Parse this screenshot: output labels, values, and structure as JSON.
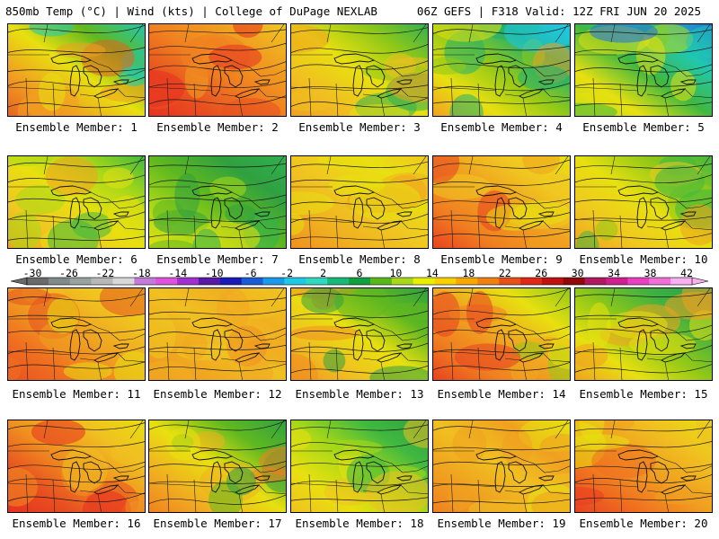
{
  "header": {
    "left": "850mb Temp (°C) | Wind (kts) | College of DuPage NEXLAB",
    "right": "06Z GEFS | F318 Valid: 12Z FRI JUN 20 2025"
  },
  "colorbar": {
    "labels": [
      "-30",
      "-26",
      "-22",
      "-18",
      "-14",
      "-10",
      "-6",
      "-2",
      "2",
      "6",
      "10",
      "14",
      "18",
      "22",
      "26",
      "30",
      "34",
      "38",
      "42"
    ],
    "colors": [
      "#6a6a6a",
      "#808a88",
      "#9aa2a0",
      "#b8b8b8",
      "#d8d8d8",
      "#c47ad8",
      "#de52de",
      "#a030d0",
      "#5a1aa8",
      "#1a1ab8",
      "#1a5cd8",
      "#1a9ae8",
      "#20c8e8",
      "#30d8c0",
      "#18b878",
      "#10a040",
      "#58b818",
      "#a8d818",
      "#e8f000",
      "#f8d000",
      "#f8a800",
      "#f08010",
      "#e85018",
      "#e02818",
      "#c01010",
      "#900808",
      "#b01860",
      "#d02090",
      "#e840c0",
      "#f070d8",
      "#f8b0f0"
    ]
  },
  "members": [
    {
      "label": "Ensemble Member: 1"
    },
    {
      "label": "Ensemble Member: 2"
    },
    {
      "label": "Ensemble Member: 3"
    },
    {
      "label": "Ensemble Member: 4"
    },
    {
      "label": "Ensemble Member: 5"
    },
    {
      "label": "Ensemble Member: 6"
    },
    {
      "label": "Ensemble Member: 7"
    },
    {
      "label": "Ensemble Member: 8"
    },
    {
      "label": "Ensemble Member: 9"
    },
    {
      "label": "Ensemble Member: 10"
    },
    {
      "label": "Ensemble Member: 11"
    },
    {
      "label": "Ensemble Member: 12"
    },
    {
      "label": "Ensemble Member: 13"
    },
    {
      "label": "Ensemble Member: 14"
    },
    {
      "label": "Ensemble Member: 15"
    },
    {
      "label": "Ensemble Member: 16"
    },
    {
      "label": "Ensemble Member: 17"
    },
    {
      "label": "Ensemble Member: 18"
    },
    {
      "label": "Ensemble Member: 19"
    },
    {
      "label": "Ensemble Member: 20"
    }
  ]
}
